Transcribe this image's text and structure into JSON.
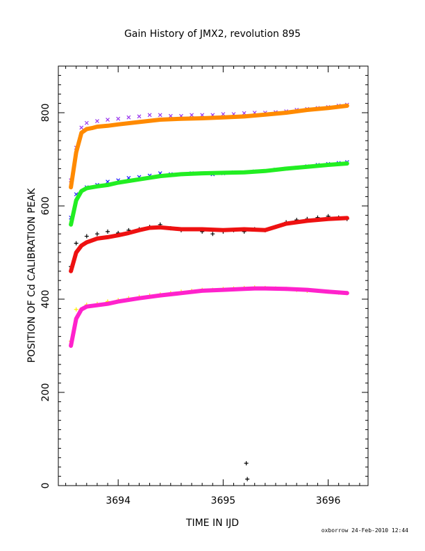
{
  "chart_data": {
    "type": "scatter",
    "title": "Gain History of JMX2, revolution 895",
    "xlabel": "TIME IN IJD",
    "ylabel": "POSITION OF Cd CALIBRATION PEAK",
    "xlim": [
      3693.43,
      3696.38
    ],
    "ylim": [
      0,
      900
    ],
    "xticks": [
      3694,
      3695,
      3696
    ],
    "xtick_labels": [
      "3694",
      "3695",
      "3696"
    ],
    "yticks": [
      0,
      200,
      400,
      600,
      800
    ],
    "ytick_labels": [
      "0",
      "200",
      "400",
      "600",
      "800"
    ],
    "grid": false,
    "legend": "none",
    "series": [
      {
        "kind": "raw",
        "marker": "x",
        "color": "#9933ee",
        "x": [
          3693.55,
          3693.6,
          3693.65,
          3693.7,
          3693.8,
          3693.9,
          3694.0,
          3694.1,
          3694.2,
          3694.3,
          3694.4,
          3694.5,
          3694.6,
          3694.7,
          3694.8,
          3694.9,
          3695.0,
          3695.1,
          3695.2,
          3695.3,
          3695.4,
          3695.5,
          3695.6,
          3695.7,
          3695.8,
          3695.9,
          3696.0,
          3696.1,
          3696.18
        ],
        "y": [
          655,
          725,
          768,
          778,
          782,
          785,
          787,
          790,
          792,
          795,
          795,
          793,
          793,
          795,
          795,
          795,
          797,
          797,
          799,
          800,
          800,
          801,
          803,
          806,
          808,
          810,
          812,
          815,
          817
        ]
      },
      {
        "kind": "fit",
        "color": "#ff8a00",
        "x": [
          3693.55,
          3693.6,
          3693.65,
          3693.7,
          3693.75,
          3693.8,
          3693.9,
          3694.0,
          3694.2,
          3694.4,
          3694.6,
          3694.8,
          3695.0,
          3695.2,
          3695.4,
          3695.6,
          3695.8,
          3696.0,
          3696.18
        ],
        "y": [
          640,
          715,
          757,
          765,
          767,
          770,
          772,
          775,
          780,
          785,
          787,
          788,
          790,
          792,
          796,
          800,
          806,
          810,
          815
        ]
      },
      {
        "kind": "raw",
        "marker": "x",
        "color": "#1a1aff",
        "x": [
          3693.55,
          3693.6,
          3693.7,
          3693.8,
          3693.9,
          3694.0,
          3694.1,
          3694.2,
          3694.3,
          3694.4,
          3694.5,
          3694.6,
          3694.7,
          3694.8,
          3694.9,
          3695.0,
          3695.1,
          3695.2,
          3695.3,
          3695.4,
          3695.5,
          3695.6,
          3695.7,
          3695.8,
          3695.9,
          3696.0,
          3696.1,
          3696.18
        ],
        "y": [
          575,
          625,
          640,
          645,
          652,
          655,
          660,
          662,
          665,
          670,
          668,
          668,
          670,
          670,
          668,
          670,
          672,
          672,
          674,
          675,
          678,
          680,
          682,
          685,
          688,
          690,
          692,
          694
        ]
      },
      {
        "kind": "fit",
        "color": "#22ee22",
        "x": [
          3693.55,
          3693.6,
          3693.65,
          3693.7,
          3693.8,
          3693.9,
          3694.0,
          3694.2,
          3694.4,
          3694.6,
          3694.8,
          3695.0,
          3695.2,
          3695.4,
          3695.6,
          3695.8,
          3696.0,
          3696.18
        ],
        "y": [
          560,
          612,
          632,
          638,
          642,
          645,
          650,
          657,
          664,
          668,
          670,
          671,
          672,
          675,
          680,
          684,
          688,
          691
        ]
      },
      {
        "kind": "raw",
        "marker": "+",
        "color": "#000000",
        "x": [
          3693.55,
          3693.6,
          3693.7,
          3693.8,
          3693.9,
          3694.0,
          3694.1,
          3694.2,
          3694.3,
          3694.4,
          3694.5,
          3694.6,
          3694.7,
          3694.8,
          3694.9,
          3695.0,
          3695.1,
          3695.2,
          3695.22,
          3695.23,
          3695.3,
          3695.4,
          3695.5,
          3695.6,
          3695.7,
          3695.8,
          3695.9,
          3696.0,
          3696.1,
          3696.18
        ],
        "y": [
          470,
          520,
          535,
          540,
          545,
          542,
          548,
          550,
          555,
          560,
          552,
          548,
          550,
          545,
          540,
          545,
          548,
          545,
          48,
          14,
          550,
          548,
          555,
          565,
          570,
          572,
          575,
          578,
          575,
          572
        ]
      },
      {
        "kind": "fit",
        "color": "#ee1111",
        "x": [
          3693.55,
          3693.6,
          3693.65,
          3693.7,
          3693.8,
          3693.9,
          3694.0,
          3694.1,
          3694.2,
          3694.3,
          3694.4,
          3694.5,
          3694.6,
          3694.8,
          3695.0,
          3695.2,
          3695.4,
          3695.5,
          3695.6,
          3695.8,
          3696.0,
          3696.18
        ],
        "y": [
          460,
          500,
          515,
          522,
          530,
          533,
          537,
          542,
          548,
          553,
          554,
          552,
          550,
          550,
          548,
          550,
          548,
          555,
          562,
          568,
          572,
          574
        ]
      },
      {
        "kind": "raw",
        "marker": "+",
        "color": "#ffee00",
        "x": [
          3693.55,
          3693.6,
          3693.7,
          3693.8,
          3693.9,
          3694.0,
          3694.1,
          3694.2,
          3694.3,
          3694.4,
          3694.5,
          3694.6,
          3694.7,
          3694.8,
          3694.9,
          3695.0,
          3695.1,
          3695.2,
          3695.3,
          3695.4,
          3695.5,
          3695.6,
          3695.7,
          3695.8,
          3695.9,
          3696.0,
          3696.1,
          3696.18
        ],
        "y": [
          310,
          378,
          388,
          390,
          395,
          398,
          402,
          405,
          408,
          410,
          413,
          416,
          418,
          420,
          420,
          422,
          423,
          424,
          425,
          424,
          423,
          422,
          420,
          418,
          418,
          416,
          414,
          413
        ]
      },
      {
        "kind": "fit",
        "color": "#ff22cc",
        "x": [
          3693.55,
          3693.6,
          3693.65,
          3693.7,
          3693.8,
          3693.9,
          3694.0,
          3694.2,
          3694.4,
          3694.6,
          3694.8,
          3695.0,
          3695.2,
          3695.3,
          3695.4,
          3695.6,
          3695.8,
          3696.0,
          3696.18
        ],
        "y": [
          300,
          358,
          378,
          384,
          387,
          390,
          395,
          402,
          408,
          413,
          418,
          420,
          422,
          423,
          423,
          422,
          420,
          416,
          413
        ]
      }
    ]
  },
  "footer": "oxborrow 24-Feb-2010 12:44"
}
